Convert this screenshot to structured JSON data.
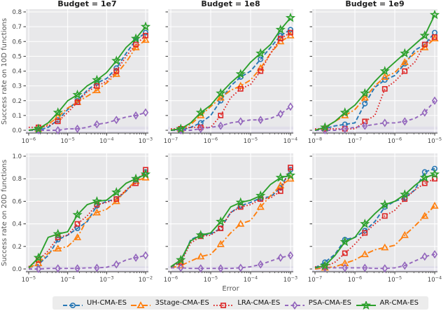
{
  "figure": {
    "background": "#ffffff",
    "panel_background": "#e8e8ea",
    "grid_color": "#ffffff",
    "band_color": "#d8d2e8",
    "spine_color": "#333333",
    "tick_label_color": "#444444",
    "title_color": "#1f1f1f",
    "axis_label_color": "#555555",
    "legend_background": "#ececec"
  },
  "titles": [
    "Budget = 1e7",
    "Budget = 1e8",
    "Budget = 1e9"
  ],
  "axis_labels": {
    "y_top": "Success rate on 10D functions",
    "y_bottom": "Success rate on 20D functions",
    "x": "Error"
  },
  "methods": [
    {
      "label": "UH-CMA-ES",
      "color": "#2878b5",
      "dash": "6,3",
      "marker": "circle"
    },
    {
      "label": "3Stage-CMA-ES",
      "color": "#ff7f0e",
      "dash": "8,3,2,3",
      "marker": "triangle"
    },
    {
      "label": "LRA-CMA-ES",
      "color": "#dd2525",
      "dash": "1.6,2.6",
      "marker": "square"
    },
    {
      "label": "PSA-CMA-ES",
      "color": "#9467bd",
      "dash": "5,3.5",
      "marker": "diamond"
    },
    {
      "label": "AR-CMA-ES",
      "color": "#2ca02c",
      "dash": "",
      "marker": "star"
    }
  ],
  "chart_data": {
    "type": "line",
    "x_axis": "Error (log scale)",
    "x_step_decades": 0.25,
    "panels": [
      {
        "name": "budget-1e7-10d",
        "title": "Budget = 1e7",
        "row": 0,
        "col": 0,
        "x_exp_start": -6,
        "x_exp_end": -3,
        "xticks": [
          -6,
          -5,
          -4,
          -3
        ],
        "ylim": [
          0,
          0.8
        ],
        "yticks": [
          0.0,
          0.1,
          0.2,
          0.3,
          0.4,
          0.5,
          0.6,
          0.7,
          0.8
        ],
        "ytick_labels": true,
        "series": [
          {
            "method": "UH-CMA-ES",
            "values": [
              0.0,
              0.0,
              0.02,
              0.07,
              0.14,
              0.2,
              0.27,
              0.32,
              0.35,
              0.42,
              0.52,
              0.61,
              0.66
            ]
          },
          {
            "method": "3Stage-CMA-ES",
            "values": [
              0.0,
              0.01,
              0.04,
              0.09,
              0.15,
              0.19,
              0.23,
              0.27,
              0.32,
              0.38,
              0.46,
              0.56,
              0.61
            ]
          },
          {
            "method": "LRA-CMA-ES",
            "values": [
              0.02,
              0.02,
              0.03,
              0.06,
              0.12,
              0.19,
              0.26,
              0.3,
              0.33,
              0.4,
              0.5,
              0.58,
              0.64
            ]
          },
          {
            "method": "PSA-CMA-ES",
            "values": [
              0.0,
              0.0,
              0.0,
              0.0,
              0.01,
              0.01,
              0.02,
              0.04,
              0.05,
              0.07,
              0.09,
              0.1,
              0.12
            ]
          },
          {
            "method": "AR-CMA-ES",
            "values": [
              0.0,
              0.01,
              0.05,
              0.12,
              0.2,
              0.24,
              0.3,
              0.34,
              0.39,
              0.47,
              0.56,
              0.62,
              0.7
            ]
          }
        ]
      },
      {
        "name": "budget-1e8-10d",
        "title": "Budget = 1e8",
        "row": 0,
        "col": 1,
        "x_exp_start": -7,
        "x_exp_end": -4,
        "xticks": [
          -7,
          -6,
          -5,
          -4
        ],
        "ylim": [
          0,
          0.8
        ],
        "yticks": [
          0.0,
          0.1,
          0.2,
          0.3,
          0.4,
          0.5,
          0.6,
          0.7,
          0.8
        ],
        "ytick_labels": false,
        "series": [
          {
            "method": "UH-CMA-ES",
            "values": [
              0.0,
              0.0,
              0.02,
              0.05,
              0.1,
              0.2,
              0.3,
              0.36,
              0.4,
              0.48,
              0.56,
              0.64,
              0.68
            ]
          },
          {
            "method": "3Stage-CMA-ES",
            "values": [
              0.0,
              0.01,
              0.04,
              0.1,
              0.16,
              0.22,
              0.27,
              0.3,
              0.34,
              0.42,
              0.52,
              0.6,
              0.64
            ]
          },
          {
            "method": "LRA-CMA-ES",
            "values": [
              0.01,
              0.01,
              0.02,
              0.02,
              0.02,
              0.1,
              0.22,
              0.28,
              0.31,
              0.4,
              0.52,
              0.62,
              0.66
            ]
          },
          {
            "method": "PSA-CMA-ES",
            "values": [
              0.0,
              0.0,
              0.0,
              0.01,
              0.02,
              0.03,
              0.05,
              0.06,
              0.07,
              0.07,
              0.08,
              0.11,
              0.16
            ]
          },
          {
            "method": "AR-CMA-ES",
            "values": [
              0.0,
              0.01,
              0.05,
              0.12,
              0.17,
              0.25,
              0.32,
              0.38,
              0.46,
              0.52,
              0.58,
              0.68,
              0.76
            ]
          }
        ]
      },
      {
        "name": "budget-1e9-10d",
        "title": "Budget = 1e9",
        "row": 0,
        "col": 2,
        "x_exp_start": -8,
        "x_exp_end": -5,
        "xticks": [
          -8,
          -7,
          -6,
          -5
        ],
        "ylim": [
          0,
          0.8
        ],
        "yticks": [
          0.0,
          0.1,
          0.2,
          0.3,
          0.4,
          0.5,
          0.6,
          0.7,
          0.8
        ],
        "ytick_labels": false,
        "series": [
          {
            "method": "UH-CMA-ES",
            "values": [
              0.0,
              0.01,
              0.03,
              0.04,
              0.05,
              0.18,
              0.29,
              0.34,
              0.37,
              0.45,
              0.54,
              0.58,
              0.66
            ]
          },
          {
            "method": "3Stage-CMA-ES",
            "values": [
              0.0,
              0.02,
              0.06,
              0.1,
              0.14,
              0.22,
              0.3,
              0.36,
              0.39,
              0.46,
              0.52,
              0.56,
              0.62
            ]
          },
          {
            "method": "LRA-CMA-ES",
            "values": [
              0.01,
              0.01,
              0.01,
              0.01,
              0.01,
              0.06,
              0.1,
              0.28,
              0.33,
              0.4,
              0.46,
              0.58,
              0.63
            ]
          },
          {
            "method": "PSA-CMA-ES",
            "values": [
              0.0,
              0.0,
              0.0,
              0.01,
              0.02,
              0.03,
              0.04,
              0.05,
              0.05,
              0.06,
              0.08,
              0.12,
              0.2
            ]
          },
          {
            "method": "AR-CMA-ES",
            "values": [
              0.0,
              0.02,
              0.06,
              0.12,
              0.17,
              0.25,
              0.33,
              0.4,
              0.46,
              0.52,
              0.58,
              0.64,
              0.78
            ]
          }
        ]
      },
      {
        "name": "budget-1e7-20d",
        "title": "",
        "row": 1,
        "col": 0,
        "x_exp_start": -5,
        "x_exp_end": -2,
        "xticks": [
          -5,
          -4,
          -3,
          -2
        ],
        "ylim": [
          0,
          1.0
        ],
        "yticks": [
          0.0,
          0.2,
          0.4,
          0.6,
          0.8,
          1.0
        ],
        "ytick_labels": true,
        "series": [
          {
            "method": "UH-CMA-ES",
            "values": [
              0.01,
              0.04,
              0.12,
              0.26,
              0.3,
              0.36,
              0.42,
              0.56,
              0.6,
              0.62,
              0.69,
              0.79,
              0.86
            ]
          },
          {
            "method": "3Stage-CMA-ES",
            "values": [
              0.01,
              0.05,
              0.14,
              0.18,
              0.2,
              0.28,
              0.44,
              0.5,
              0.53,
              0.6,
              0.7,
              0.78,
              0.81
            ]
          },
          {
            "method": "LRA-CMA-ES",
            "values": [
              0.02,
              0.08,
              0.16,
              0.28,
              0.3,
              0.4,
              0.47,
              0.57,
              0.59,
              0.62,
              0.7,
              0.76,
              0.88
            ]
          },
          {
            "method": "PSA-CMA-ES",
            "values": [
              0.0,
              0.0,
              0.005,
              0.005,
              0.005,
              0.005,
              0.01,
              0.01,
              0.015,
              0.04,
              0.08,
              0.1,
              0.12
            ]
          },
          {
            "method": "AR-CMA-ES",
            "values": [
              0.01,
              0.1,
              0.28,
              0.31,
              0.33,
              0.48,
              0.57,
              0.6,
              0.61,
              0.68,
              0.76,
              0.8,
              0.84
            ]
          }
        ]
      },
      {
        "name": "budget-1e8-20d",
        "title": "",
        "row": 1,
        "col": 1,
        "x_exp_start": -6,
        "x_exp_end": -3,
        "xticks": [
          -6,
          -5,
          -4,
          -3
        ],
        "ylim": [
          0,
          1.0
        ],
        "yticks": [
          0.0,
          0.2,
          0.4,
          0.6,
          0.8,
          1.0
        ],
        "ytick_labels": false,
        "series": [
          {
            "method": "UH-CMA-ES",
            "values": [
              0.01,
              0.06,
              0.26,
              0.3,
              0.31,
              0.36,
              0.5,
              0.56,
              0.59,
              0.63,
              0.64,
              0.72,
              0.88
            ]
          },
          {
            "method": "3Stage-CMA-ES",
            "values": [
              0.01,
              0.03,
              0.07,
              0.11,
              0.13,
              0.22,
              0.32,
              0.4,
              0.43,
              0.55,
              0.65,
              0.74,
              0.8
            ]
          },
          {
            "method": "LRA-CMA-ES",
            "values": [
              0.02,
              0.06,
              0.23,
              0.29,
              0.3,
              0.36,
              0.5,
              0.55,
              0.57,
              0.62,
              0.63,
              0.69,
              0.9
            ]
          },
          {
            "method": "PSA-CMA-ES",
            "values": [
              0.01,
              0.01,
              0.005,
              0.005,
              0.005,
              0.005,
              0.005,
              0.01,
              0.02,
              0.04,
              0.07,
              0.1,
              0.12
            ]
          },
          {
            "method": "AR-CMA-ES",
            "values": [
              0.02,
              0.08,
              0.25,
              0.3,
              0.32,
              0.42,
              0.55,
              0.59,
              0.61,
              0.65,
              0.75,
              0.81,
              0.83
            ]
          }
        ]
      },
      {
        "name": "budget-1e9-20d",
        "title": "",
        "row": 1,
        "col": 2,
        "x_exp_start": -7,
        "x_exp_end": -4,
        "xticks": [
          -7,
          -6,
          -5,
          -4
        ],
        "ylim": [
          0,
          1.0
        ],
        "yticks": [
          0.0,
          0.2,
          0.4,
          0.6,
          0.8,
          1.0
        ],
        "ytick_labels": false,
        "series": [
          {
            "method": "UH-CMA-ES",
            "values": [
              0.01,
              0.06,
              0.13,
              0.26,
              0.28,
              0.34,
              0.42,
              0.55,
              0.6,
              0.63,
              0.7,
              0.86,
              0.89
            ]
          },
          {
            "method": "3Stage-CMA-ES",
            "values": [
              0.0,
              0.01,
              0.02,
              0.05,
              0.08,
              0.13,
              0.17,
              0.19,
              0.21,
              0.3,
              0.38,
              0.47,
              0.56
            ]
          },
          {
            "method": "LRA-CMA-ES",
            "values": [
              0.02,
              0.02,
              0.06,
              0.14,
              0.22,
              0.32,
              0.4,
              0.47,
              0.52,
              0.62,
              0.7,
              0.76,
              0.8
            ]
          },
          {
            "method": "PSA-CMA-ES",
            "values": [
              0.01,
              0.01,
              0.01,
              0.01,
              0.01,
              0.01,
              0.005,
              0.005,
              0.01,
              0.03,
              0.07,
              0.11,
              0.13
            ]
          },
          {
            "method": "AR-CMA-ES",
            "values": [
              0.01,
              0.03,
              0.12,
              0.24,
              0.28,
              0.4,
              0.49,
              0.57,
              0.6,
              0.66,
              0.74,
              0.81,
              0.84
            ]
          }
        ]
      }
    ]
  }
}
